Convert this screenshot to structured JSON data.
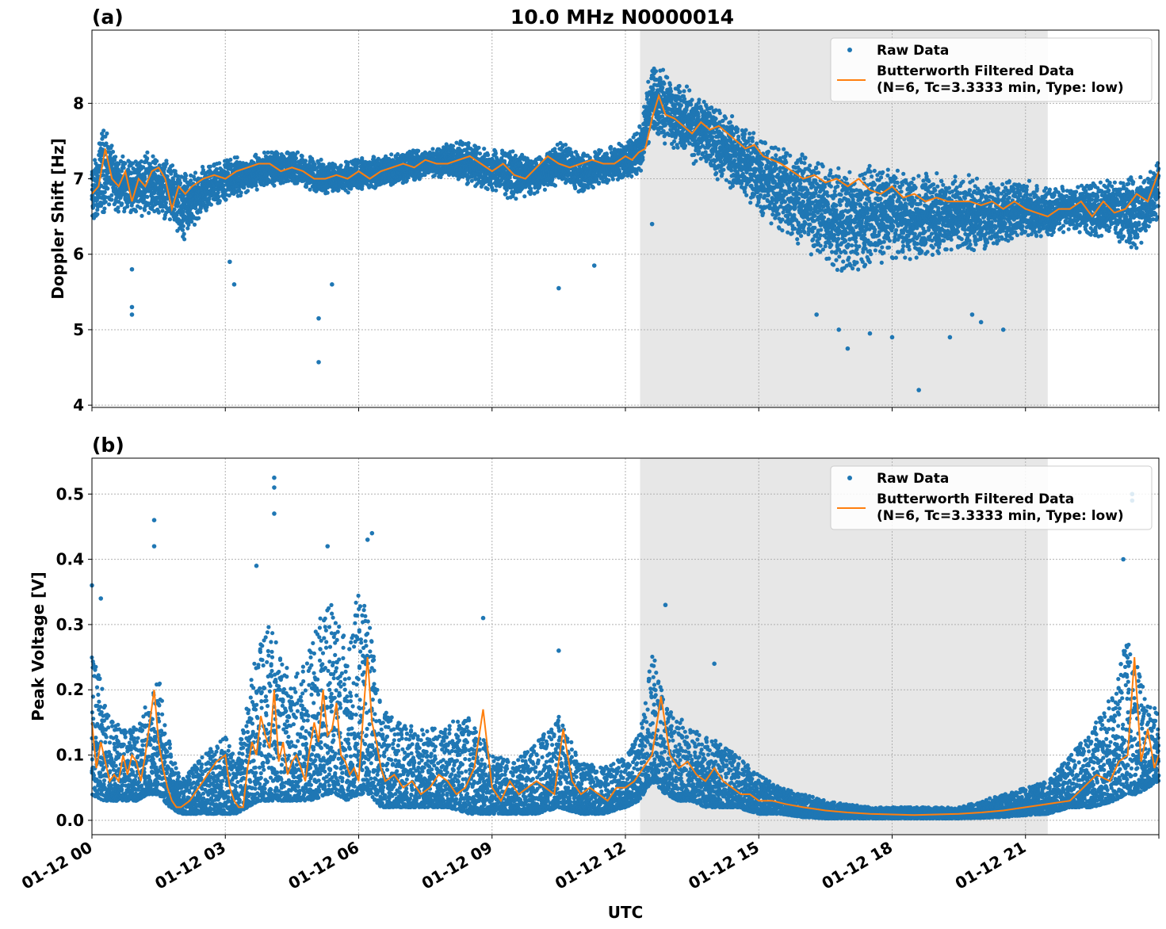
{
  "figure": {
    "title": "10.0 MHz N0000014",
    "xlabel": "UTC",
    "x_ticks": [
      "01-12 00",
      "01-12 03",
      "01-12 06",
      "01-12 09",
      "01-12 12",
      "01-12 15",
      "01-12 18",
      "01-12 21"
    ]
  },
  "colors": {
    "raw": "#1f77b4",
    "filtered": "#ff7f0e",
    "shade": "#e7e7e7",
    "grid": "#b0b0b0"
  },
  "chart_data": [
    {
      "panel": "(a)",
      "type": "scatter",
      "ylabel": "Doppler Shift [Hz]",
      "xlim_hours": [
        0,
        24
      ],
      "ylim": [
        3.97,
        8.97
      ],
      "y_ticks": [
        4,
        5,
        6,
        7,
        8
      ],
      "grid": true,
      "legend_position": "top-right",
      "shaded_region_hours": [
        12.33,
        21.5
      ],
      "series": [
        {
          "name": "Raw Data",
          "style": "points",
          "band_hours": [
            0,
            0.25,
            0.5,
            0.75,
            1,
            1.25,
            1.5,
            1.75,
            2,
            2.5,
            3,
            3.5,
            4,
            4.5,
            5,
            5.5,
            6,
            6.5,
            7,
            7.5,
            8,
            8.5,
            9,
            9.5,
            10,
            10.5,
            11,
            11.5,
            12,
            12.3,
            12.6,
            13,
            13.5,
            14,
            14.5,
            15,
            15.5,
            16,
            16.5,
            17,
            17.5,
            18,
            18.5,
            19,
            19.5,
            20,
            20.5,
            21,
            21.5,
            22,
            22.5,
            23,
            23.5,
            24
          ],
          "band_low": [
            6.3,
            6.5,
            6.6,
            6.5,
            6.5,
            6.5,
            6.5,
            6.4,
            6.0,
            6.5,
            6.7,
            6.8,
            6.9,
            6.9,
            6.8,
            6.8,
            6.8,
            6.9,
            6.9,
            7.0,
            7.0,
            6.9,
            6.8,
            6.7,
            6.8,
            6.9,
            6.8,
            6.9,
            7.0,
            7.0,
            7.6,
            7.4,
            7.2,
            7.0,
            6.8,
            6.5,
            6.2,
            6.0,
            5.8,
            5.7,
            5.8,
            5.9,
            5.9,
            5.9,
            6.0,
            6.0,
            6.1,
            6.2,
            6.2,
            6.3,
            6.2,
            6.2,
            6.0,
            6.5
          ],
          "band_high": [
            7.2,
            7.8,
            7.4,
            7.3,
            7.3,
            7.4,
            7.3,
            7.3,
            7.1,
            7.2,
            7.3,
            7.3,
            7.4,
            7.4,
            7.3,
            7.2,
            7.3,
            7.3,
            7.4,
            7.4,
            7.5,
            7.5,
            7.4,
            7.4,
            7.3,
            7.5,
            7.4,
            7.4,
            7.5,
            7.7,
            8.6,
            8.4,
            8.2,
            8.0,
            7.8,
            7.6,
            7.5,
            7.4,
            7.3,
            7.2,
            7.2,
            7.2,
            7.1,
            7.1,
            7.1,
            7.0,
            7.0,
            7.0,
            6.9,
            6.9,
            7.0,
            7.0,
            7.1,
            7.3
          ],
          "outliers": [
            [
              0.9,
              5.3
            ],
            [
              0.9,
              5.2
            ],
            [
              0.9,
              5.8
            ],
            [
              5.1,
              5.15
            ],
            [
              5.1,
              4.57
            ],
            [
              5.4,
              5.6
            ],
            [
              3.1,
              5.9
            ],
            [
              3.2,
              5.6
            ],
            [
              10.5,
              5.55
            ],
            [
              11.3,
              5.85
            ],
            [
              16.3,
              5.2
            ],
            [
              16.8,
              5.0
            ],
            [
              17.0,
              4.75
            ],
            [
              17.5,
              4.95
            ],
            [
              18.0,
              4.9
            ],
            [
              18.6,
              4.2
            ],
            [
              19.3,
              4.9
            ],
            [
              19.8,
              5.2
            ],
            [
              20.0,
              5.1
            ],
            [
              20.5,
              5.0
            ],
            [
              12.6,
              6.4
            ]
          ]
        },
        {
          "name": "Butterworth Filtered Data\n(N=6, Tc=3.3333 min, Type: low)",
          "style": "line",
          "x_hours": [
            0,
            0.15,
            0.3,
            0.45,
            0.6,
            0.75,
            0.9,
            1.05,
            1.2,
            1.35,
            1.5,
            1.65,
            1.8,
            1.95,
            2.1,
            2.25,
            2.5,
            2.75,
            3,
            3.25,
            3.5,
            3.75,
            4,
            4.25,
            4.5,
            4.75,
            5,
            5.25,
            5.5,
            5.75,
            6,
            6.25,
            6.5,
            6.75,
            7,
            7.25,
            7.5,
            7.75,
            8,
            8.25,
            8.5,
            8.75,
            9,
            9.25,
            9.5,
            9.75,
            10,
            10.25,
            10.5,
            10.75,
            11,
            11.25,
            11.5,
            11.75,
            12,
            12.15,
            12.3,
            12.45,
            12.6,
            12.75,
            12.9,
            13.1,
            13.3,
            13.5,
            13.7,
            13.9,
            14.1,
            14.3,
            14.5,
            14.7,
            14.9,
            15.1,
            15.3,
            15.5,
            15.75,
            16,
            16.25,
            16.5,
            16.75,
            17,
            17.25,
            17.5,
            17.75,
            18,
            18.25,
            18.5,
            18.75,
            19,
            19.25,
            19.5,
            19.75,
            20,
            20.25,
            20.5,
            20.75,
            21,
            21.25,
            21.5,
            21.75,
            22,
            22.25,
            22.5,
            22.75,
            23,
            23.25,
            23.5,
            23.75,
            24
          ],
          "y": [
            6.8,
            6.9,
            7.4,
            7.0,
            6.9,
            7.1,
            6.7,
            7.0,
            6.9,
            7.1,
            7.15,
            7.0,
            6.6,
            6.9,
            6.8,
            6.9,
            7.0,
            7.05,
            7.0,
            7.1,
            7.15,
            7.2,
            7.2,
            7.1,
            7.15,
            7.1,
            7.0,
            7.0,
            7.05,
            7.0,
            7.1,
            7.0,
            7.1,
            7.15,
            7.2,
            7.15,
            7.25,
            7.2,
            7.2,
            7.25,
            7.3,
            7.2,
            7.1,
            7.2,
            7.05,
            7.0,
            7.15,
            7.3,
            7.2,
            7.15,
            7.2,
            7.25,
            7.2,
            7.2,
            7.3,
            7.25,
            7.35,
            7.4,
            7.8,
            8.1,
            7.85,
            7.8,
            7.7,
            7.6,
            7.75,
            7.65,
            7.7,
            7.6,
            7.5,
            7.4,
            7.45,
            7.3,
            7.25,
            7.2,
            7.1,
            7.0,
            7.05,
            6.95,
            7.0,
            6.9,
            7.0,
            6.85,
            6.8,
            6.9,
            6.75,
            6.8,
            6.7,
            6.75,
            6.7,
            6.7,
            6.7,
            6.65,
            6.7,
            6.6,
            6.7,
            6.6,
            6.55,
            6.5,
            6.6,
            6.6,
            6.7,
            6.5,
            6.7,
            6.55,
            6.6,
            6.8,
            6.7,
            7.1
          ]
        }
      ]
    },
    {
      "panel": "(b)",
      "type": "scatter",
      "ylabel": "Peak Voltage [V]",
      "xlim_hours": [
        0,
        24
      ],
      "ylim": [
        -0.022,
        0.555
      ],
      "y_ticks": [
        0.0,
        0.1,
        0.2,
        0.3,
        0.4,
        0.5
      ],
      "y_tick_labels": [
        "0.0",
        "0.1",
        "0.2",
        "0.3",
        "0.4",
        "0.5"
      ],
      "grid": true,
      "legend_position": "top-right",
      "shaded_region_hours": [
        12.33,
        21.5
      ],
      "series": [
        {
          "name": "Raw Data",
          "style": "points",
          "band_hours": [
            0,
            0.25,
            0.5,
            0.75,
            1,
            1.25,
            1.5,
            1.75,
            2,
            2.5,
            3,
            3.25,
            3.5,
            3.75,
            4,
            4.25,
            4.5,
            4.75,
            5,
            5.25,
            5.5,
            5.75,
            6,
            6.25,
            6.5,
            6.75,
            7,
            7.5,
            8,
            8.5,
            9,
            9.5,
            10,
            10.5,
            11,
            11.5,
            12,
            12.3,
            12.6,
            12.9,
            13.2,
            13.5,
            13.8,
            14.1,
            14.5,
            15,
            15.5,
            16,
            16.5,
            17,
            17.5,
            18,
            18.5,
            19,
            19.5,
            20,
            20.5,
            21,
            21.5,
            22,
            22.5,
            23,
            23.25,
            23.5,
            23.75,
            24
          ],
          "band_low": [
            0.04,
            0.03,
            0.03,
            0.03,
            0.03,
            0.04,
            0.04,
            0.02,
            0.01,
            0.01,
            0.01,
            0.01,
            0.02,
            0.03,
            0.03,
            0.03,
            0.03,
            0.03,
            0.03,
            0.04,
            0.04,
            0.03,
            0.04,
            0.04,
            0.02,
            0.02,
            0.02,
            0.02,
            0.02,
            0.01,
            0.01,
            0.01,
            0.01,
            0.02,
            0.01,
            0.01,
            0.02,
            0.03,
            0.06,
            0.04,
            0.03,
            0.03,
            0.02,
            0.02,
            0.02,
            0.01,
            0.01,
            0.005,
            0.003,
            0.003,
            0.003,
            0.003,
            0.003,
            0.003,
            0.003,
            0.004,
            0.005,
            0.008,
            0.01,
            0.02,
            0.02,
            0.03,
            0.04,
            0.04,
            0.05,
            0.06
          ],
          "band_high": [
            0.26,
            0.2,
            0.15,
            0.14,
            0.15,
            0.18,
            0.22,
            0.12,
            0.06,
            0.1,
            0.13,
            0.09,
            0.18,
            0.28,
            0.3,
            0.25,
            0.22,
            0.24,
            0.29,
            0.33,
            0.33,
            0.26,
            0.36,
            0.3,
            0.17,
            0.16,
            0.15,
            0.14,
            0.15,
            0.16,
            0.1,
            0.09,
            0.12,
            0.16,
            0.09,
            0.08,
            0.1,
            0.13,
            0.26,
            0.18,
            0.16,
            0.14,
            0.13,
            0.12,
            0.1,
            0.07,
            0.05,
            0.04,
            0.03,
            0.025,
            0.02,
            0.02,
            0.02,
            0.02,
            0.02,
            0.03,
            0.04,
            0.05,
            0.06,
            0.1,
            0.14,
            0.2,
            0.28,
            0.24,
            0.18,
            0.17
          ],
          "outliers": [
            [
              4.1,
              0.525
            ],
            [
              4.1,
              0.51
            ],
            [
              4.1,
              0.47
            ],
            [
              1.4,
              0.46
            ],
            [
              1.4,
              0.42
            ],
            [
              6.3,
              0.44
            ],
            [
              6.2,
              0.43
            ],
            [
              5.3,
              0.42
            ],
            [
              23.4,
              0.5
            ],
            [
              23.4,
              0.49
            ],
            [
              23.2,
              0.4
            ],
            [
              3.7,
              0.39
            ],
            [
              12.9,
              0.33
            ],
            [
              14.0,
              0.24
            ],
            [
              8.8,
              0.31
            ],
            [
              10.5,
              0.26
            ],
            [
              0.0,
              0.36
            ],
            [
              0.2,
              0.34
            ]
          ]
        },
        {
          "name": "Butterworth Filtered Data\n(N=6, Tc=3.3333 min, Type: low)",
          "style": "line",
          "x_hours": [
            0,
            0.1,
            0.2,
            0.3,
            0.4,
            0.5,
            0.6,
            0.7,
            0.8,
            0.9,
            1.0,
            1.1,
            1.2,
            1.3,
            1.4,
            1.5,
            1.6,
            1.7,
            1.8,
            1.9,
            2.0,
            2.2,
            2.4,
            2.6,
            2.8,
            3.0,
            3.1,
            3.2,
            3.3,
            3.4,
            3.5,
            3.6,
            3.7,
            3.8,
            3.9,
            4.0,
            4.1,
            4.2,
            4.3,
            4.4,
            4.5,
            4.6,
            4.7,
            4.8,
            4.9,
            5.0,
            5.1,
            5.2,
            5.3,
            5.4,
            5.5,
            5.6,
            5.7,
            5.8,
            5.9,
            6.0,
            6.1,
            6.2,
            6.3,
            6.4,
            6.5,
            6.6,
            6.8,
            7.0,
            7.2,
            7.4,
            7.6,
            7.8,
            8.0,
            8.2,
            8.4,
            8.6,
            8.8,
            9.0,
            9.2,
            9.4,
            9.6,
            9.8,
            10.0,
            10.2,
            10.4,
            10.6,
            10.8,
            11.0,
            11.2,
            11.4,
            11.6,
            11.8,
            12.0,
            12.2,
            12.4,
            12.6,
            12.8,
            13.0,
            13.2,
            13.4,
            13.6,
            13.8,
            14.0,
            14.2,
            14.4,
            14.6,
            14.8,
            15.0,
            15.3,
            15.6,
            16.0,
            16.5,
            17.0,
            17.5,
            18.0,
            18.5,
            19.0,
            19.5,
            20.0,
            20.5,
            21.0,
            21.5,
            22.0,
            22.3,
            22.6,
            22.9,
            23.1,
            23.3,
            23.45,
            23.6,
            23.75,
            23.9,
            24.0
          ],
          "y": [
            0.15,
            0.08,
            0.12,
            0.09,
            0.06,
            0.07,
            0.06,
            0.1,
            0.07,
            0.1,
            0.09,
            0.06,
            0.1,
            0.15,
            0.2,
            0.12,
            0.08,
            0.05,
            0.03,
            0.02,
            0.02,
            0.03,
            0.05,
            0.07,
            0.09,
            0.1,
            0.05,
            0.03,
            0.02,
            0.02,
            0.08,
            0.12,
            0.1,
            0.16,
            0.13,
            0.11,
            0.2,
            0.09,
            0.12,
            0.07,
            0.09,
            0.1,
            0.08,
            0.06,
            0.11,
            0.15,
            0.12,
            0.2,
            0.13,
            0.14,
            0.18,
            0.1,
            0.09,
            0.07,
            0.08,
            0.06,
            0.16,
            0.25,
            0.15,
            0.12,
            0.08,
            0.06,
            0.07,
            0.05,
            0.06,
            0.04,
            0.05,
            0.07,
            0.06,
            0.04,
            0.05,
            0.08,
            0.17,
            0.05,
            0.03,
            0.06,
            0.04,
            0.05,
            0.06,
            0.05,
            0.04,
            0.14,
            0.06,
            0.04,
            0.05,
            0.04,
            0.03,
            0.05,
            0.05,
            0.06,
            0.08,
            0.1,
            0.19,
            0.1,
            0.08,
            0.09,
            0.07,
            0.06,
            0.08,
            0.06,
            0.05,
            0.04,
            0.04,
            0.03,
            0.03,
            0.025,
            0.02,
            0.015,
            0.012,
            0.01,
            0.009,
            0.008,
            0.009,
            0.01,
            0.012,
            0.015,
            0.02,
            0.025,
            0.03,
            0.05,
            0.07,
            0.06,
            0.09,
            0.1,
            0.25,
            0.09,
            0.14,
            0.08,
            0.1
          ]
        }
      ]
    }
  ]
}
